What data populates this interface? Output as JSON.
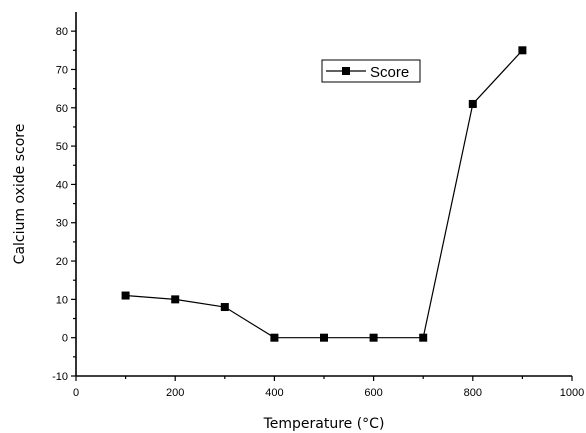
{
  "chart_data": {
    "type": "line",
    "title": "",
    "xlabel": "Temperature (°C)",
    "ylabel": "Calcium oxide score",
    "xlim": [
      0,
      1000
    ],
    "ylim": [
      -10,
      85
    ],
    "xticks": [
      0,
      200,
      400,
      600,
      800,
      1000
    ],
    "yticks": [
      -10,
      0,
      10,
      20,
      30,
      40,
      50,
      60,
      70,
      80
    ],
    "grid": false,
    "legend_position": "top-right",
    "series": [
      {
        "name": "Score",
        "color": "#000000",
        "marker": "square",
        "x": [
          100,
          200,
          300,
          400,
          500,
          600,
          700,
          800,
          900
        ],
        "y": [
          11,
          10,
          8,
          0,
          0,
          0,
          0,
          61,
          75
        ]
      }
    ]
  }
}
